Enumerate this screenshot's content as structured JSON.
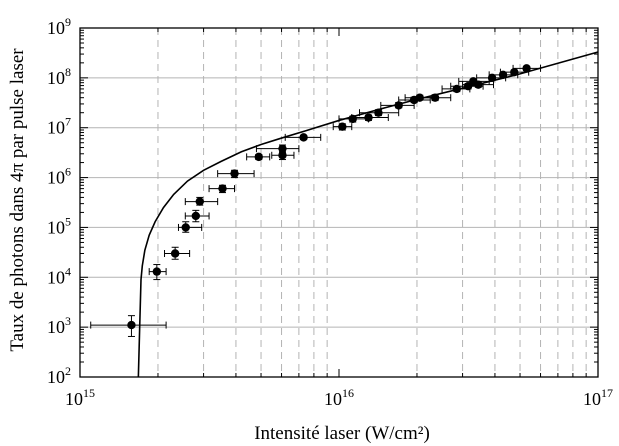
{
  "chart_data": {
    "type": "scatter",
    "xlabel": "Intensité laser (W/cm²)",
    "ylabel": "Taux de photons dans 4π par pulse laser",
    "xscale": "log",
    "yscale": "log",
    "xlim": [
      1000000000000000.0,
      1e+17
    ],
    "ylim": [
      100,
      1000000000.0
    ],
    "grid": "dashed vertical lines at x minor/major ticks; solid horizontal lines at y decades",
    "x_ticks": [
      {
        "base": "10",
        "exp": "15"
      },
      {
        "base": "10",
        "exp": "16"
      },
      {
        "base": "10",
        "exp": "17"
      }
    ],
    "y_ticks": [
      {
        "base": "10",
        "exp": "2"
      },
      {
        "base": "10",
        "exp": "3"
      },
      {
        "base": "10",
        "exp": "4"
      },
      {
        "base": "10",
        "exp": "5"
      },
      {
        "base": "10",
        "exp": "6"
      },
      {
        "base": "10",
        "exp": "7"
      },
      {
        "base": "10",
        "exp": "8"
      },
      {
        "base": "10",
        "exp": "9"
      }
    ],
    "points": [
      {
        "x": 1580000000000000.0,
        "y": 1100.0,
        "xerr": [
          1100000000000000.0,
          2150000000000000.0
        ],
        "yerr": [
          650.0,
          1700.0
        ]
      },
      {
        "x": 1980000000000000.0,
        "y": 13000.0,
        "xerr": [
          1850000000000000.0,
          2150000000000000.0
        ],
        "yerr": [
          9000.0,
          18000.0
        ]
      },
      {
        "x": 2330000000000000.0,
        "y": 30000.0,
        "xerr": [
          2120000000000000.0,
          2650000000000000.0
        ],
        "yerr": [
          23000.0,
          40000.0
        ]
      },
      {
        "x": 2560000000000000.0,
        "y": 100000.0,
        "xerr": [
          2400000000000000.0,
          2950000000000000.0
        ],
        "yerr": [
          80000.0,
          130000.0
        ]
      },
      {
        "x": 2800000000000000.0,
        "y": 170000.0,
        "xerr": [
          2550000000000000.0,
          3150000000000000.0
        ],
        "yerr": [
          130000.0,
          220000.0
        ]
      },
      {
        "x": 2900000000000000.0,
        "y": 330000.0,
        "xerr": [
          2550000000000000.0,
          3400000000000000.0
        ],
        "yerr": [
          280000.0,
          400000.0
        ]
      },
      {
        "x": 3550000000000000.0,
        "y": 600000.0,
        "xerr": [
          3150000000000000.0,
          3950000000000000.0
        ],
        "yerr": [
          500000.0,
          700000.0
        ]
      },
      {
        "x": 3950000000000000.0,
        "y": 1200000.0,
        "xerr": [
          3400000000000000.0,
          4700000000000000.0
        ],
        "yerr": [
          1000000.0,
          1400000.0
        ]
      },
      {
        "x": 4900000000000000.0,
        "y": 2600000.0,
        "xerr": [
          4400000000000000.0,
          5400000000000000.0
        ],
        "yerr": [
          2300000.0,
          2900000.0
        ]
      },
      {
        "x": 6050000000000000.0,
        "y": 2800000.0,
        "xerr": [
          5500000000000000.0,
          6700000000000000.0
        ],
        "yerr": [
          2300000.0,
          3300000.0
        ]
      },
      {
        "x": 6050000000000000.0,
        "y": 3800000.0,
        "xerr": [
          4800000000000000.0,
          7000000000000000.0
        ],
        "yerr": [
          3200000.0,
          4500000.0
        ]
      },
      {
        "x": 7300000000000000.0,
        "y": 6400000.0,
        "xerr": [
          6200000000000000.0,
          8500000000000000.0
        ],
        "yerr": [
          5800000.0,
          7000000.0
        ]
      },
      {
        "x": 1.03e+16,
        "y": 10500000.0,
        "xerr": [
          9500000000000000.0,
          1.12e+16
        ],
        "yerr": [
          9000000.0,
          12000000.0
        ]
      },
      {
        "x": 1.13e+16,
        "y": 15000000.0,
        "xerr": [
          1e+16,
          1.3e+16
        ],
        "yerr": [
          13000000.0,
          17000000.0
        ]
      },
      {
        "x": 1.3e+16,
        "y": 16000000.0,
        "xerr": [
          1.12e+16,
          1.55e+16
        ],
        "yerr": [
          14000000.0,
          18000000.0
        ]
      },
      {
        "x": 1.42e+16,
        "y": 20000000.0,
        "xerr": [
          1.2e+16,
          1.7e+16
        ],
        "yerr": [
          17500000.0,
          23000000.0
        ]
      },
      {
        "x": 1.7e+16,
        "y": 28000000.0,
        "xerr": [
          1.45e+16,
          1.95e+16
        ],
        "yerr": [
          25000000.0,
          32000000.0
        ]
      },
      {
        "x": 1.95e+16,
        "y": 36000000.0,
        "xerr": [
          1.7e+16,
          2.25e+16
        ],
        "yerr": [
          32000000.0,
          41000000.0
        ]
      },
      {
        "x": 2.05e+16,
        "y": 40000000.0,
        "xerr": [
          1.8e+16,
          2.35e+16
        ],
        "yerr": [
          36000000.0,
          45000000.0
        ]
      },
      {
        "x": 2.35e+16,
        "y": 40000000.0,
        "xerr": [
          2.05e+16,
          2.7e+16
        ],
        "yerr": [
          35000000.0,
          46000000.0
        ]
      },
      {
        "x": 2.85e+16,
        "y": 60000000.0,
        "xerr": [
          2.5e+16,
          3.2e+16
        ],
        "yerr": [
          53000000.0,
          68000000.0
        ]
      },
      {
        "x": 3.15e+16,
        "y": 68000000.0,
        "xerr": [
          2.7e+16,
          3.6e+16
        ],
        "yerr": [
          60000000.0,
          77000000.0
        ]
      },
      {
        "x": 3.3e+16,
        "y": 85000000.0,
        "xerr": [
          2.9e+16,
          3.8e+16
        ],
        "yerr": [
          77000000.0,
          94000000.0
        ]
      },
      {
        "x": 3.45e+16,
        "y": 73000000.0,
        "xerr": [
          3e+16,
          3.95e+16
        ],
        "yerr": [
          65000000.0,
          82000000.0
        ]
      },
      {
        "x": 3.9e+16,
        "y": 100000000.0,
        "xerr": [
          3.4e+16,
          4.4e+16
        ],
        "yerr": [
          90000000.0,
          110000000.0
        ]
      },
      {
        "x": 4.3e+16,
        "y": 115000000.0,
        "xerr": [
          3.8e+16,
          4.9e+16
        ],
        "yerr": [
          105000000.0,
          127000000.0
        ]
      },
      {
        "x": 4.75e+16,
        "y": 130000000.0,
        "xerr": [
          4.2e+16,
          5.4e+16
        ],
        "yerr": [
          118000000.0,
          143000000.0
        ]
      },
      {
        "x": 5.3e+16,
        "y": 155000000.0,
        "xerr": [
          4.7e+16,
          6e+16
        ],
        "yerr": [
          140000000.0,
          170000000.0
        ]
      }
    ],
    "fit_curve": {
      "x": [
        1680000000000000.0,
        1700000000000000.0,
        1720000000000000.0,
        1740000000000000.0,
        1780000000000000.0,
        1850000000000000.0,
        1950000000000000.0,
        2100000000000000.0,
        2300000000000000.0,
        2600000000000000.0,
        3000000000000000.0,
        3500000000000000.0,
        4200000000000000.0,
        5000000000000000.0,
        6000000000000000.0,
        7500000000000000.0,
        1e+16,
        1.5e+16,
        2e+16,
        3e+16,
        5e+16,
        1e+17
      ],
      "y": [
        100.0,
        1000.0,
        9000.0,
        17000.0,
        35000.0,
        70000.0,
        130000.0,
        250000.0,
        460000.0,
        850000.0,
        1400000.0,
        2100000.0,
        3300000.0,
        4600000.0,
        6200000.0,
        8800000.0,
        14000000.0,
        25000000.0,
        37000000.0,
        62000000.0,
        120000000.0,
        330000000.0
      ]
    }
  }
}
